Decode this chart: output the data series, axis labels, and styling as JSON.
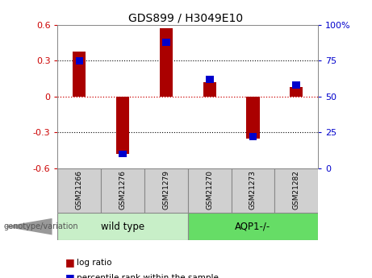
{
  "title": "GDS899 / H3049E10",
  "samples": [
    "GSM21266",
    "GSM21276",
    "GSM21279",
    "GSM21270",
    "GSM21273",
    "GSM21282"
  ],
  "log_ratios": [
    0.38,
    -0.48,
    0.57,
    0.12,
    -0.35,
    0.08
  ],
  "percentile_ranks": [
    75,
    10,
    88,
    62,
    22,
    58
  ],
  "bar_color_red": "#AA0000",
  "bar_color_blue": "#0000CC",
  "ylim_left": [
    -0.6,
    0.6
  ],
  "ylim_right": [
    0,
    100
  ],
  "yticks_left": [
    -0.6,
    -0.3,
    0.0,
    0.3,
    0.6
  ],
  "yticks_right": [
    0,
    25,
    50,
    75,
    100
  ],
  "background_color": "#ffffff",
  "label_log_ratio": "log ratio",
  "label_percentile": "percentile rank within the sample",
  "genotype_label": "genotype/variation",
  "group_spans": [
    [
      "wild type",
      0,
      2
    ],
    [
      "AQP1-/-",
      3,
      5
    ]
  ],
  "group_colors": [
    "#C8EFC8",
    "#66DD66"
  ],
  "sample_box_color": "#D0D0D0",
  "sample_box_edge": "#888888",
  "red_bar_width": 0.3,
  "blue_marker_size": 0.18
}
